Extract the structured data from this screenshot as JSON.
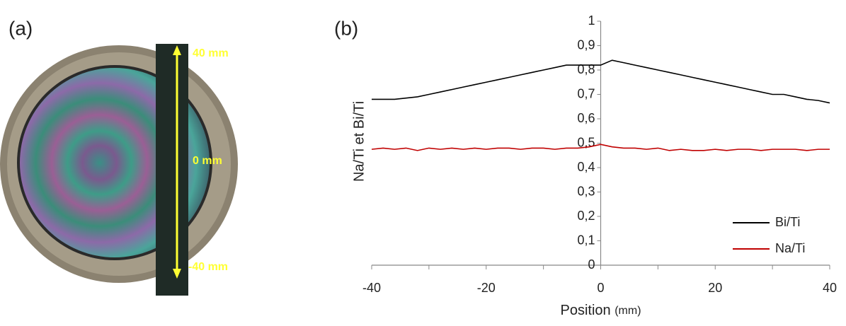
{
  "photo": {
    "label": "(a)",
    "annotations": [
      "40 mm",
      "0 mm",
      "-40 mm"
    ]
  },
  "chart_data": {
    "type": "line",
    "label": "(b)",
    "ylabel": "Na/Ti et Bi/Ti",
    "xlabel": "Position",
    "xlabel_unit": "(mm)",
    "x": [
      -40,
      -38,
      -36,
      -34,
      -32,
      -30,
      -28,
      -26,
      -24,
      -22,
      -20,
      -18,
      -16,
      -14,
      -12,
      -10,
      -8,
      -6,
      -4,
      -2,
      0,
      2,
      4,
      6,
      8,
      10,
      12,
      14,
      16,
      18,
      20,
      22,
      24,
      26,
      28,
      30,
      32,
      34,
      36,
      38,
      40
    ],
    "series": [
      {
        "name": "Bi/Ti",
        "color": "#000000",
        "values": [
          0.68,
          0.68,
          0.68,
          0.685,
          0.69,
          0.7,
          0.71,
          0.72,
          0.73,
          0.74,
          0.75,
          0.76,
          0.77,
          0.78,
          0.79,
          0.8,
          0.81,
          0.82,
          0.82,
          0.82,
          0.82,
          0.84,
          0.83,
          0.82,
          0.81,
          0.8,
          0.79,
          0.78,
          0.77,
          0.76,
          0.75,
          0.74,
          0.73,
          0.72,
          0.71,
          0.7,
          0.7,
          0.69,
          0.68,
          0.675,
          0.665
        ]
      },
      {
        "name": "Na/Ti",
        "color": "#c00000",
        "values": [
          0.475,
          0.48,
          0.475,
          0.48,
          0.47,
          0.48,
          0.475,
          0.48,
          0.475,
          0.48,
          0.475,
          0.48,
          0.48,
          0.475,
          0.48,
          0.48,
          0.475,
          0.48,
          0.48,
          0.485,
          0.495,
          0.485,
          0.48,
          0.48,
          0.475,
          0.48,
          0.47,
          0.475,
          0.47,
          0.47,
          0.475,
          0.47,
          0.475,
          0.475,
          0.47,
          0.475,
          0.475,
          0.475,
          0.47,
          0.475,
          0.475
        ]
      }
    ],
    "xlim": [
      -40,
      40
    ],
    "xticks": [
      -40,
      -20,
      0,
      20,
      40
    ],
    "xminorticks": [
      -30,
      -10,
      10,
      30
    ],
    "ylim": [
      0,
      1
    ],
    "yticks": [
      0,
      {
        "value": 0.1,
        "label": "0,1"
      },
      {
        "value": 0.2,
        "label": "0,2"
      },
      {
        "value": 0.3,
        "label": "0,3"
      },
      {
        "value": 0.4,
        "label": "0,4"
      },
      {
        "value": 0.5,
        "label": "0,5"
      },
      {
        "value": 0.6,
        "label": "0,6"
      },
      {
        "value": 0.7,
        "label": "0,7"
      },
      {
        "value": 0.8,
        "label": "0,8"
      },
      {
        "value": 0.9,
        "label": "0,9"
      },
      1
    ],
    "legend": "lower right",
    "grid": false
  }
}
